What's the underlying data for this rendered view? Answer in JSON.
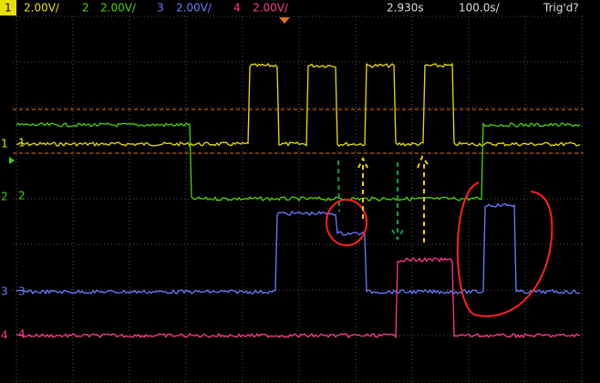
{
  "header": {
    "channels": [
      {
        "number": "1",
        "scale": "2.00V/"
      },
      {
        "number": "2",
        "scale": "2.00V/"
      },
      {
        "number": "3",
        "scale": "2.00V/"
      },
      {
        "number": "4",
        "scale": "2.00V/"
      }
    ],
    "delay": "2.930s",
    "timebase": "100.0s/",
    "trigger": "Trig'd?"
  },
  "traces": [
    {
      "label": "1"
    },
    {
      "label": "2"
    },
    {
      "label": "3"
    },
    {
      "label": "4"
    }
  ]
}
